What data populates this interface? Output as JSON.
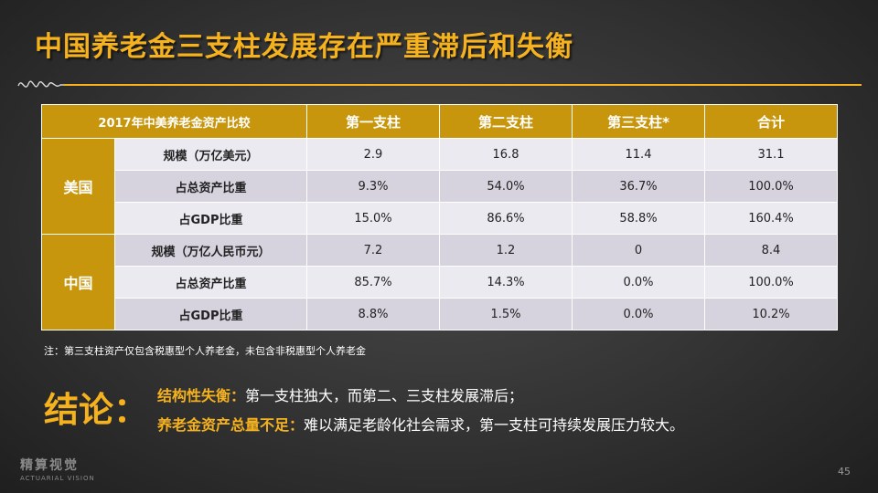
{
  "title": "中国养老金三支柱发展存在严重滞后和失衡",
  "table": {
    "headers": [
      "2017年中美养老金资产比较",
      "第一支柱",
      "第二支柱",
      "第三支柱*",
      "合计"
    ],
    "groups": [
      {
        "name": "美国",
        "rows": [
          {
            "label": "规模（万亿美元）",
            "values": [
              "2.9",
              "16.8",
              "11.4",
              "31.1"
            ]
          },
          {
            "label": "占总资产比重",
            "values": [
              "9.3%",
              "54.0%",
              "36.7%",
              "100.0%"
            ]
          },
          {
            "label": "占GDP比重",
            "values": [
              "15.0%",
              "86.6%",
              "58.8%",
              "160.4%"
            ]
          }
        ]
      },
      {
        "name": "中国",
        "rows": [
          {
            "label": "规模（万亿人民币元）",
            "values": [
              "7.2",
              "1.2",
              "0",
              "8.4"
            ]
          },
          {
            "label": "占总资产比重",
            "values": [
              "85.7%",
              "14.3%",
              "0.0%",
              "100.0%"
            ]
          },
          {
            "label": "占GDP比重",
            "values": [
              "8.8%",
              "1.5%",
              "0.0%",
              "10.2%"
            ]
          }
        ]
      }
    ]
  },
  "note": "注：第三支柱资产仅包含税惠型个人养老金，未包含非税惠型个人养老金",
  "conclusion": {
    "label": "结论：",
    "points": [
      {
        "highlight": "结构性失衡：",
        "text": "第一支柱独大，而第二、三支柱发展滞后；"
      },
      {
        "highlight": "养老金资产总量不足：",
        "text": "难以满足老龄化社会需求，第一支柱可持续发展压力较大。"
      }
    ]
  },
  "logo": {
    "main": "精算视觉",
    "sub": "ACTUARIAL VISION"
  },
  "page_number": "45",
  "colors": {
    "accent": "#F5B21E",
    "header_fill": "#C8960C",
    "row_light": "#ECEAF1",
    "row_dark": "#D6D2DE"
  }
}
